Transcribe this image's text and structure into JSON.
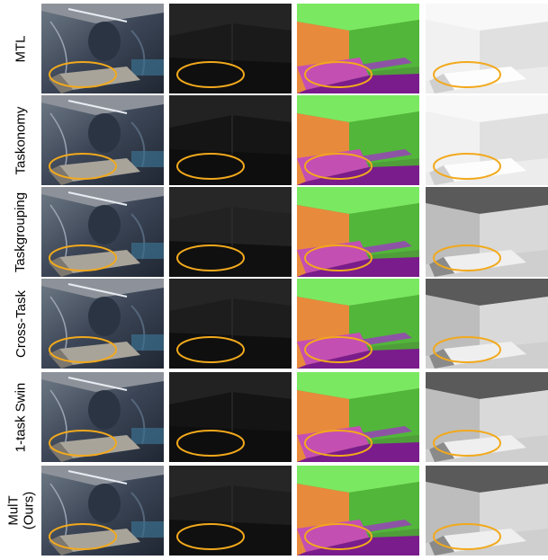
{
  "figure": {
    "rows": [
      {
        "label_lines": [
          "MTL"
        ]
      },
      {
        "label_lines": [
          "Taskonomy"
        ]
      },
      {
        "label_lines": [
          "Taskgrouping"
        ]
      },
      {
        "label_lines": [
          "Cross-Task"
        ]
      },
      {
        "label_lines": [
          "1-task Swin"
        ]
      },
      {
        "label_lines": [
          "MulT",
          "(Ours)"
        ]
      }
    ],
    "columns": [
      "rgb-input",
      "depth",
      "surface-normals",
      "reshading"
    ],
    "highlight_color": "#f2a91c"
  }
}
